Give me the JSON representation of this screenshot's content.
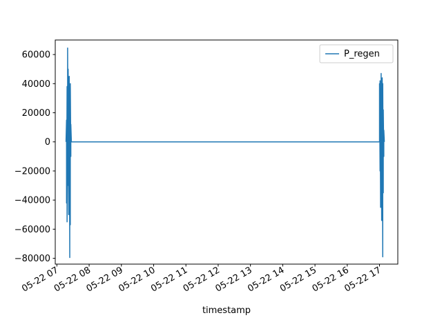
{
  "chart_data": {
    "type": "line",
    "xlabel": "timestamp",
    "ylabel": "",
    "x_type": "time",
    "x_reference_date": "2000-05-22",
    "xlim": [
      "05-22 06:57",
      "05-22 17:34"
    ],
    "ylim": [
      -84000,
      70000
    ],
    "x_ticks": [
      "05-22 07",
      "05-22 08",
      "05-22 09",
      "05-22 10",
      "05-22 11",
      "05-22 12",
      "05-22 13",
      "05-22 14",
      "05-22 15",
      "05-22 16",
      "05-22 17"
    ],
    "y_ticks": [
      -80000,
      -60000,
      -40000,
      -20000,
      0,
      20000,
      40000,
      60000
    ],
    "y_tick_labels": [
      "−80000",
      "−60000",
      "−40000",
      "−20000",
      "0",
      "20000",
      "40000",
      "60000"
    ],
    "grid": false,
    "legend_position": "upper right",
    "series": [
      {
        "name": "P_regen",
        "color": "#1f77b4",
        "points": [
          [
            "05-22 07:17",
            0
          ],
          [
            "05-22 07:18",
            15000
          ],
          [
            "05-22 07:18",
            -42000
          ],
          [
            "05-22 07:19",
            38000
          ],
          [
            "05-22 07:19",
            -55000
          ],
          [
            "05-22 07:20",
            5000
          ],
          [
            "05-22 07:20",
            64500
          ],
          [
            "05-22 07:21",
            -30000
          ],
          [
            "05-22 07:21",
            50000
          ],
          [
            "05-22 07:22",
            -50000
          ],
          [
            "05-22 07:22",
            30000
          ],
          [
            "05-22 07:23",
            -20000
          ],
          [
            "05-22 07:23",
            45000
          ],
          [
            "05-22 07:24",
            -79500
          ],
          [
            "05-22 07:24",
            20000
          ],
          [
            "05-22 07:25",
            -57000
          ],
          [
            "05-22 07:25",
            40000
          ],
          [
            "05-22 07:26",
            -10000
          ],
          [
            "05-22 07:26",
            12000
          ],
          [
            "05-22 07:27",
            0
          ],
          [
            "05-22 17:00",
            0
          ],
          [
            "05-22 17:00",
            40000
          ],
          [
            "05-22 17:01",
            -20000
          ],
          [
            "05-22 17:01",
            42000
          ],
          [
            "05-22 17:02",
            -45000
          ],
          [
            "05-22 17:02",
            35000
          ],
          [
            "05-22 17:03",
            -10000
          ],
          [
            "05-22 17:03",
            47000
          ],
          [
            "05-22 17:04",
            -54000
          ],
          [
            "05-22 17:04",
            25000
          ],
          [
            "05-22 17:05",
            -30000
          ],
          [
            "05-22 17:05",
            44000
          ],
          [
            "05-22 17:06",
            -79000
          ],
          [
            "05-22 17:06",
            40000
          ],
          [
            "05-22 17:07",
            -35000
          ],
          [
            "05-22 17:07",
            22000
          ],
          [
            "05-22 17:08",
            -10000
          ],
          [
            "05-22 17:08",
            8000
          ],
          [
            "05-22 17:09",
            0
          ]
        ]
      }
    ]
  }
}
